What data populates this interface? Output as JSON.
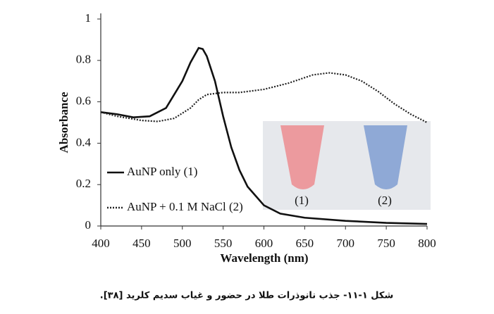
{
  "chart_data": {
    "type": "line",
    "xlabel": "Wavelength (nm)",
    "ylabel": "Absorbance",
    "xlim": [
      400,
      800
    ],
    "xticks": [
      400,
      450,
      500,
      550,
      600,
      650,
      700,
      750,
      800
    ],
    "ylim": [
      0,
      1
    ],
    "yticks": [
      0,
      0.2,
      0.4,
      0.6,
      0.8,
      1
    ],
    "legend": "lower-left",
    "series": [
      {
        "name": "AuNP only (1)",
        "color": "#111111",
        "style": "solid",
        "x": [
          400,
          420,
          440,
          460,
          480,
          500,
          510,
          520,
          525,
          530,
          540,
          550,
          560,
          570,
          580,
          600,
          620,
          650,
          700,
          750,
          800
        ],
        "values": [
          0.55,
          0.54,
          0.525,
          0.53,
          0.57,
          0.7,
          0.79,
          0.86,
          0.855,
          0.82,
          0.7,
          0.53,
          0.38,
          0.27,
          0.19,
          0.1,
          0.06,
          0.04,
          0.025,
          0.015,
          0.01
        ]
      },
      {
        "name": "AuNP + 0.1 M NaCl (2)",
        "color": "#222222",
        "style": "dotted",
        "x": [
          400,
          420,
          450,
          470,
          490,
          510,
          520,
          530,
          550,
          570,
          600,
          630,
          660,
          680,
          700,
          720,
          740,
          760,
          780,
          800
        ],
        "values": [
          0.55,
          0.53,
          0.51,
          0.505,
          0.52,
          0.57,
          0.61,
          0.635,
          0.645,
          0.645,
          0.66,
          0.69,
          0.73,
          0.74,
          0.73,
          0.7,
          0.65,
          0.59,
          0.54,
          0.5
        ]
      }
    ],
    "annotations": [
      "(1)",
      "(2)"
    ]
  },
  "caption": "شکل ۱-۱۱- جذب نانوذرات طلا در حضور و غیاب سدیم کلرید [۳۸]."
}
